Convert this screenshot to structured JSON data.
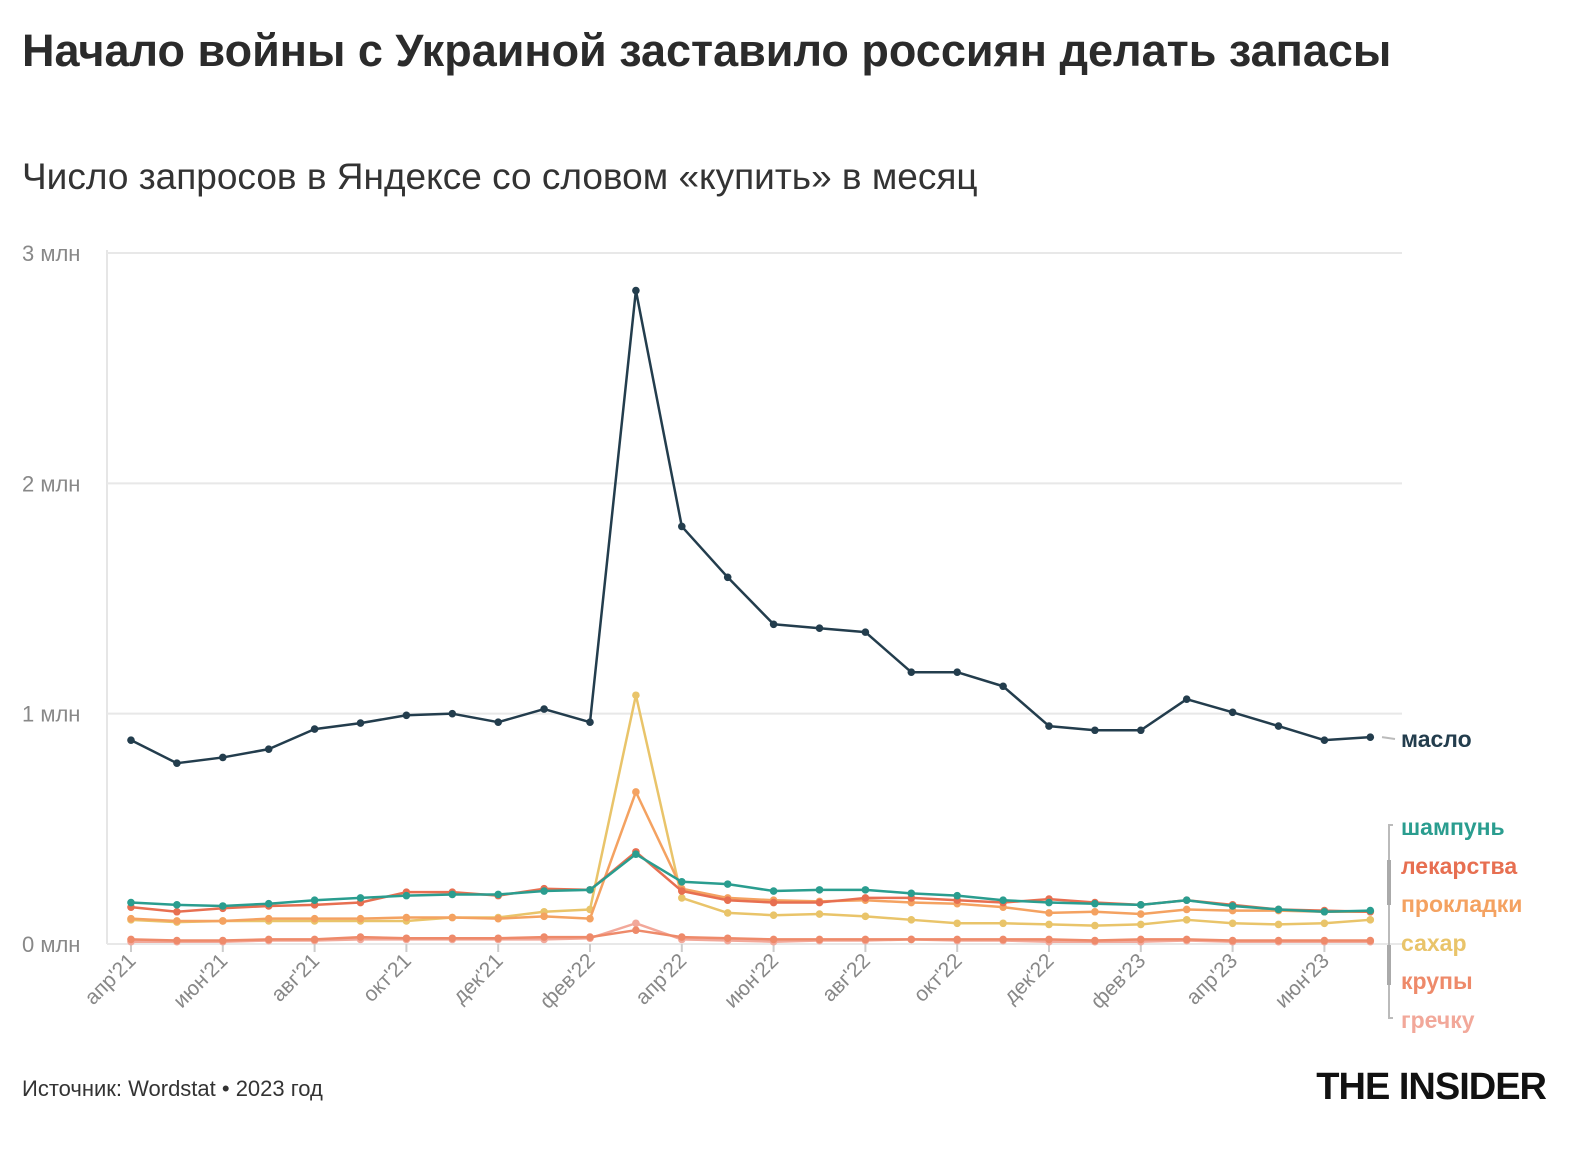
{
  "chart_data": {
    "type": "line",
    "title": "Начало войны с Украиной заставило россиян делать запасы",
    "subtitle": "Число запросов в Яндексе со словом «купить» в месяц",
    "xlabel": "",
    "ylabel": "",
    "ylim": [
      0,
      3
    ],
    "yticks": [
      {
        "v": 0,
        "label": "0 млн"
      },
      {
        "v": 1,
        "label": "1 млн"
      },
      {
        "v": 2,
        "label": "2 млн"
      },
      {
        "v": 3,
        "label": "3 млн"
      }
    ],
    "y_unit": "млн",
    "grid": true,
    "legend": "right, direct labels",
    "x": [
      "апр'21",
      "май'21",
      "июн'21",
      "июл'21",
      "авг'21",
      "сен'21",
      "окт'21",
      "ноя'21",
      "дек'21",
      "янв'22",
      "фев'22",
      "мар'22",
      "апр'22",
      "май'22",
      "июн'22",
      "июл'22",
      "авг'22",
      "сен'22",
      "окт'22",
      "ноя'22",
      "дек'22",
      "янв'23",
      "фев'23",
      "мар'23",
      "апр'23",
      "май'23",
      "июн'23",
      "июл'23"
    ],
    "xtick_labels": [
      "апр'21",
      "июн'21",
      "авг'21",
      "окт'21",
      "дек'21",
      "фев'22",
      "апр'22",
      "июн'22",
      "авг'22",
      "окт'22",
      "дек'22",
      "фев'23",
      "апр'23",
      "июн'23"
    ],
    "series": [
      {
        "name": "масло",
        "color": "#233d4d",
        "values": [
          0.885,
          0.785,
          0.81,
          0.846,
          0.933,
          0.959,
          0.993,
          1.0,
          0.963,
          1.02,
          0.963,
          2.837,
          1.813,
          1.592,
          1.388,
          1.371,
          1.354,
          1.18,
          1.18,
          1.119,
          0.946,
          0.928,
          0.928,
          1.063,
          1.006,
          0.946,
          0.885,
          0.898
        ]
      },
      {
        "name": "шампунь",
        "color": "#2a9d8f",
        "values": [
          0.18,
          0.17,
          0.165,
          0.175,
          0.19,
          0.2,
          0.21,
          0.215,
          0.215,
          0.23,
          0.235,
          0.39,
          0.27,
          0.26,
          0.23,
          0.235,
          0.235,
          0.22,
          0.21,
          0.19,
          0.18,
          0.175,
          0.17,
          0.19,
          0.165,
          0.15,
          0.14,
          0.145
        ]
      },
      {
        "name": "лекарства",
        "color": "#e76f51",
        "values": [
          0.16,
          0.14,
          0.155,
          0.165,
          0.17,
          0.18,
          0.225,
          0.225,
          0.21,
          0.24,
          0.235,
          0.4,
          0.23,
          0.19,
          0.18,
          0.18,
          0.2,
          0.2,
          0.19,
          0.18,
          0.195,
          0.18,
          0.17,
          0.19,
          0.17,
          0.15,
          0.145,
          0.14
        ]
      },
      {
        "name": "прокладки",
        "color": "#f4a261",
        "values": [
          0.11,
          0.1,
          0.1,
          0.11,
          0.11,
          0.11,
          0.115,
          0.115,
          0.11,
          0.12,
          0.11,
          0.66,
          0.24,
          0.2,
          0.19,
          0.185,
          0.19,
          0.18,
          0.175,
          0.16,
          0.135,
          0.14,
          0.13,
          0.15,
          0.145,
          0.145,
          0.14,
          0.14
        ]
      },
      {
        "name": "сахар",
        "color": "#e9c46a",
        "values": [
          0.105,
          0.095,
          0.1,
          0.1,
          0.1,
          0.1,
          0.1,
          0.115,
          0.115,
          0.14,
          0.15,
          1.08,
          0.2,
          0.135,
          0.125,
          0.13,
          0.12,
          0.105,
          0.09,
          0.09,
          0.085,
          0.08,
          0.085,
          0.105,
          0.09,
          0.085,
          0.09,
          0.105
        ]
      },
      {
        "name": "крупы",
        "color": "#ee8a6a",
        "values": [
          0.02,
          0.015,
          0.015,
          0.02,
          0.02,
          0.03,
          0.025,
          0.025,
          0.025,
          0.03,
          0.03,
          0.06,
          0.03,
          0.025,
          0.02,
          0.02,
          0.02,
          0.02,
          0.02,
          0.02,
          0.02,
          0.015,
          0.02,
          0.02,
          0.015,
          0.015,
          0.015,
          0.015
        ]
      },
      {
        "name": "гречку",
        "color": "#f2a89a",
        "values": [
          0.01,
          0.01,
          0.01,
          0.015,
          0.015,
          0.02,
          0.02,
          0.02,
          0.02,
          0.02,
          0.025,
          0.09,
          0.02,
          0.015,
          0.01,
          0.015,
          0.015,
          0.02,
          0.015,
          0.015,
          0.01,
          0.01,
          0.01,
          0.015,
          0.01,
          0.01,
          0.01,
          0.01
        ]
      }
    ]
  },
  "footer": {
    "source": "Источник: Wordstat • 2023 год",
    "logo": "THE INSIDER"
  }
}
